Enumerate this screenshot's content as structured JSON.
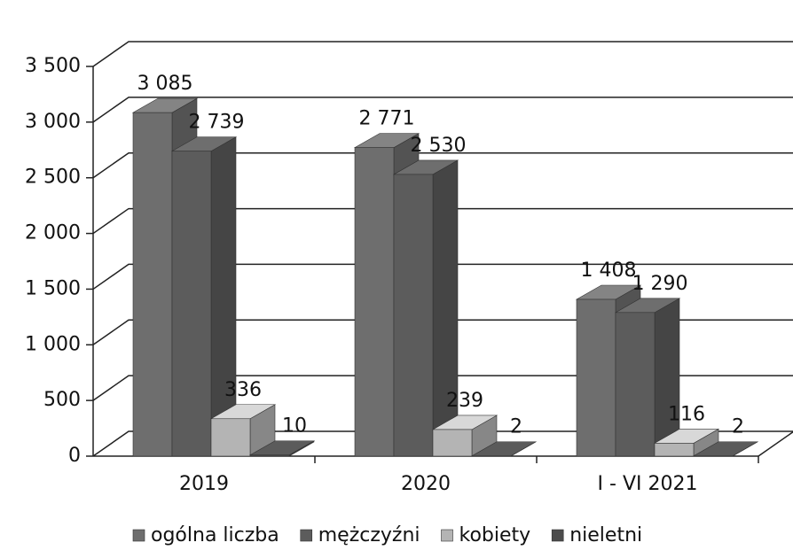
{
  "chart_data": {
    "type": "bar3d",
    "categories": [
      "2019",
      "2020",
      "I - VI 2021"
    ],
    "series": [
      {
        "name": "ogólna liczba",
        "color": "#6e6e6e",
        "values": [
          3085,
          2771,
          1408
        ],
        "value_labels": [
          "3 085",
          "2 771",
          "1 408"
        ]
      },
      {
        "name": "mężczyźni",
        "color": "#5c5c5c",
        "values": [
          2739,
          2530,
          1290
        ],
        "value_labels": [
          "2 739",
          "2 530",
          "1 290"
        ]
      },
      {
        "name": "kobiety",
        "color": "#b4b4b4",
        "values": [
          336,
          239,
          116
        ]
      },
      {
        "name": "nieletni",
        "color": "#4c4c4c",
        "values": [
          10,
          2,
          2
        ]
      }
    ],
    "ylim": [
      0,
      3500
    ],
    "yticks": [
      0,
      500,
      {
        "value": 1000,
        "label": "1 000"
      },
      {
        "value": 1500,
        "label": "1 500"
      },
      {
        "value": 2000,
        "label": "2 000"
      },
      {
        "value": 2500,
        "label": "2 500"
      },
      {
        "value": 3000,
        "label": "3 000"
      },
      {
        "value": 3500,
        "label": "3 500"
      }
    ],
    "grid": true
  }
}
